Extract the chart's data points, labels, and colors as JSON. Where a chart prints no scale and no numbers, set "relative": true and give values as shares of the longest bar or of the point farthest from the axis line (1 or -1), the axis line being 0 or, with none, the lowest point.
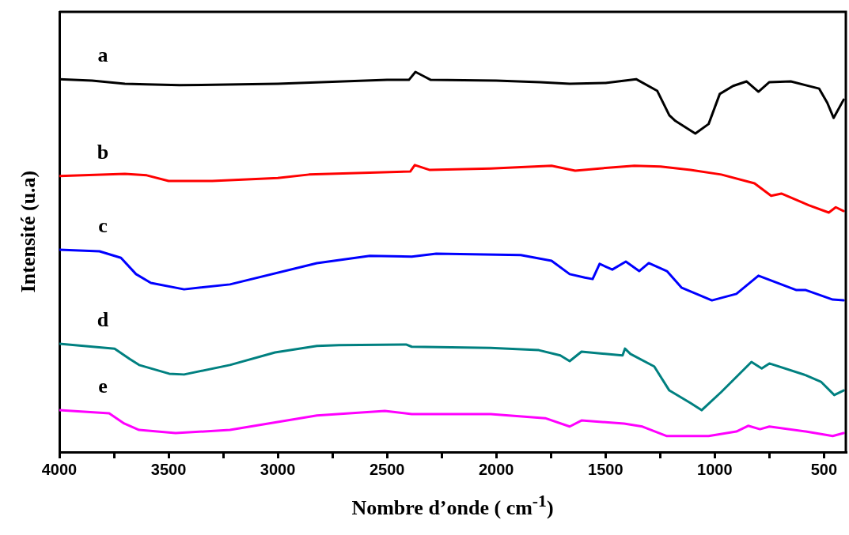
{
  "chart_data": {
    "type": "line",
    "relative": true,
    "xlabel": "Nombre d’onde ( cm$^{-1}$)",
    "ylabel": "Intensité (u.a)",
    "marker": "none",
    "legend": false,
    "xlim": [
      4000,
      400
    ],
    "xticks": [
      4000,
      {
        "value": 3750,
        "label": null
      },
      3500,
      {
        "value": 3250,
        "label": null
      },
      3000,
      {
        "value": 2750,
        "label": null
      },
      2500,
      {
        "value": 2250,
        "label": null
      },
      2000,
      {
        "value": 1750,
        "label": null
      },
      1500,
      {
        "value": 1250,
        "label": null
      },
      1000,
      {
        "value": 750,
        "label": null
      },
      500
    ],
    "series": [
      {
        "name": "a",
        "color": "#000000",
        "x": [
          4000,
          3850,
          3700,
          3600,
          3450,
          3000,
          2500,
          2400,
          2370,
          2330,
          2300,
          2000,
          1800,
          1664,
          1500,
          1360,
          1263,
          1208,
          1180,
          1089,
          1028,
          977,
          916,
          854,
          800,
          750,
          652,
          522,
          485,
          456,
          410
        ],
        "values": [
          0.981,
          0.977,
          0.969,
          0.967,
          0.965,
          0.969,
          0.979,
          0.979,
          1.0,
          0.988,
          0.979,
          0.977,
          0.973,
          0.969,
          0.971,
          0.981,
          0.95,
          0.886,
          0.871,
          0.838,
          0.863,
          0.942,
          0.963,
          0.975,
          0.948,
          0.973,
          0.975,
          0.956,
          0.919,
          0.879,
          0.927
        ]
      },
      {
        "name": "b",
        "color": "#ff0000",
        "x": [
          4000,
          3700,
          3600,
          3500,
          3300,
          3000,
          2857,
          2394,
          2373,
          2304,
          2026,
          1747,
          1639,
          1527,
          1368,
          1248,
          1111,
          970,
          818,
          742,
          695,
          568,
          478,
          446,
          410
        ],
        "values": [
          0.726,
          0.732,
          0.728,
          0.713,
          0.713,
          0.721,
          0.73,
          0.738,
          0.755,
          0.742,
          0.746,
          0.753,
          0.74,
          0.746,
          0.753,
          0.751,
          0.742,
          0.73,
          0.707,
          0.674,
          0.68,
          0.649,
          0.63,
          0.644,
          0.634
        ]
      },
      {
        "name": "c",
        "color": "#0000ff",
        "x": [
          4000,
          3816,
          3718,
          3649,
          3581,
          3429,
          3219,
          2821,
          2579,
          2387,
          2275,
          1888,
          1747,
          1664,
          1595,
          1559,
          1527,
          1469,
          1407,
          1346,
          1302,
          1219,
          1151,
          1013,
          901,
          800,
          626,
          583,
          460,
          410
        ],
        "values": [
          0.532,
          0.528,
          0.511,
          0.468,
          0.445,
          0.428,
          0.441,
          0.497,
          0.516,
          0.514,
          0.522,
          0.518,
          0.503,
          0.468,
          0.459,
          0.455,
          0.495,
          0.48,
          0.501,
          0.476,
          0.497,
          0.476,
          0.432,
          0.399,
          0.416,
          0.464,
          0.426,
          0.426,
          0.401,
          0.399
        ]
      },
      {
        "name": "d",
        "color": "#008080",
        "x": [
          4000,
          3747,
          3678,
          3635,
          3497,
          3429,
          3219,
          3013,
          2821,
          2720,
          2413,
          2387,
          2026,
          1805,
          1707,
          1664,
          1610,
          1422,
          1411,
          1386,
          1277,
          1208,
          1111,
          1060,
          970,
          832,
          785,
          750,
          583,
          514,
          453,
          410
        ],
        "values": [
          0.285,
          0.272,
          0.245,
          0.229,
          0.206,
          0.204,
          0.229,
          0.262,
          0.279,
          0.281,
          0.283,
          0.277,
          0.274,
          0.268,
          0.254,
          0.239,
          0.264,
          0.254,
          0.272,
          0.258,
          0.225,
          0.162,
          0.129,
          0.11,
          0.158,
          0.237,
          0.22,
          0.233,
          0.202,
          0.185,
          0.15,
          0.162
        ]
      },
      {
        "name": "e",
        "color": "#ff00ff",
        "x": [
          4000,
          3772,
          3703,
          3635,
          3468,
          3219,
          2821,
          2510,
          2387,
          2026,
          1776,
          1664,
          1610,
          1415,
          1331,
          1219,
          1028,
          901,
          847,
          793,
          750,
          583,
          460,
          410
        ],
        "values": [
          0.11,
          0.102,
          0.075,
          0.058,
          0.05,
          0.058,
          0.096,
          0.108,
          0.1,
          0.1,
          0.089,
          0.067,
          0.083,
          0.075,
          0.067,
          0.042,
          0.042,
          0.054,
          0.069,
          0.06,
          0.067,
          0.054,
          0.042,
          0.05
        ]
      }
    ]
  }
}
